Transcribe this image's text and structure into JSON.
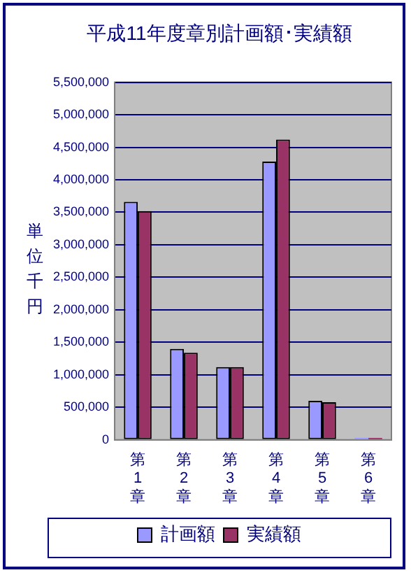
{
  "chart_data": {
    "type": "bar",
    "title": "平成11年度章別計画額･実績額",
    "ylabel": "単位千円",
    "categories": [
      "第1章",
      "第2章",
      "第3章",
      "第4章",
      "第5章",
      "第6章"
    ],
    "series": [
      {
        "name": "計画額",
        "color": "#9999ff",
        "values": [
          3660000,
          1400000,
          1120000,
          4280000,
          600000,
          30000
        ]
      },
      {
        "name": "実績額",
        "color": "#993366",
        "values": [
          3520000,
          1340000,
          1120000,
          4620000,
          580000,
          30000
        ]
      }
    ],
    "ylim": [
      0,
      5500000
    ],
    "yticks": [
      0,
      {
        "value": 500000,
        "label": "500,000"
      },
      {
        "value": 1000000,
        "label": "1,000,000"
      },
      {
        "value": 1500000,
        "label": "1,500,000"
      },
      {
        "value": 2000000,
        "label": "2,000,000"
      },
      {
        "value": 2500000,
        "label": "2,500,000"
      },
      {
        "value": 3000000,
        "label": "3,000,000"
      },
      {
        "value": 3500000,
        "label": "3,500,000"
      },
      {
        "value": 4000000,
        "label": "4,000,000"
      },
      {
        "value": 4500000,
        "label": "4,500,000"
      },
      {
        "value": 5000000,
        "label": "5,000,000"
      },
      {
        "value": 5500000,
        "label": "5,500,000"
      }
    ],
    "grid": "y",
    "legend": "bottom"
  }
}
